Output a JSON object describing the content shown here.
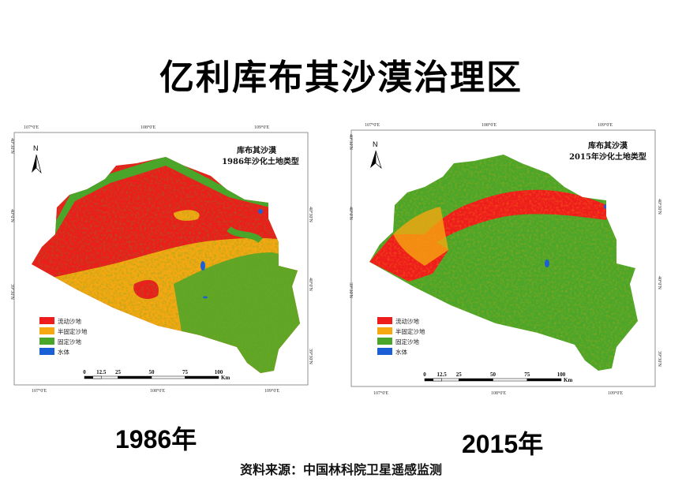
{
  "title": "亿利库布其沙漠治理区",
  "source": "资料来源：中国林科院卫星遥感监测",
  "colors": {
    "mobile": "#ee1c1c",
    "semi_fixed": "#f5a812",
    "fixed": "#4aa62a",
    "water": "#1a5fd6"
  },
  "legend": [
    {
      "label": "流动沙地",
      "color": "#ee1c1c"
    },
    {
      "label": "半固定沙地",
      "color": "#f5a812"
    },
    {
      "label": "固定沙地",
      "color": "#4aa62a"
    },
    {
      "label": "水体",
      "color": "#1a5fd6"
    }
  ],
  "graticule": {
    "lon": [
      "107°0'E",
      "108°0'E",
      "109°0'E"
    ],
    "lat": [
      "40°30'N",
      "40°0'N",
      "39°30'N"
    ]
  },
  "scale_bar": {
    "ticks": [
      "0",
      "12.5",
      "25",
      "50",
      "75",
      "100"
    ],
    "unit": "Km"
  },
  "north_label": "N",
  "maps": [
    {
      "year_label": "1986年",
      "title_line1": "库布其沙漠",
      "title_line2": "1986年沙化土地类型"
    },
    {
      "year_label": "2015年",
      "title_line1": "库布其沙漠",
      "title_line2": "2015年沙化土地类型"
    }
  ]
}
